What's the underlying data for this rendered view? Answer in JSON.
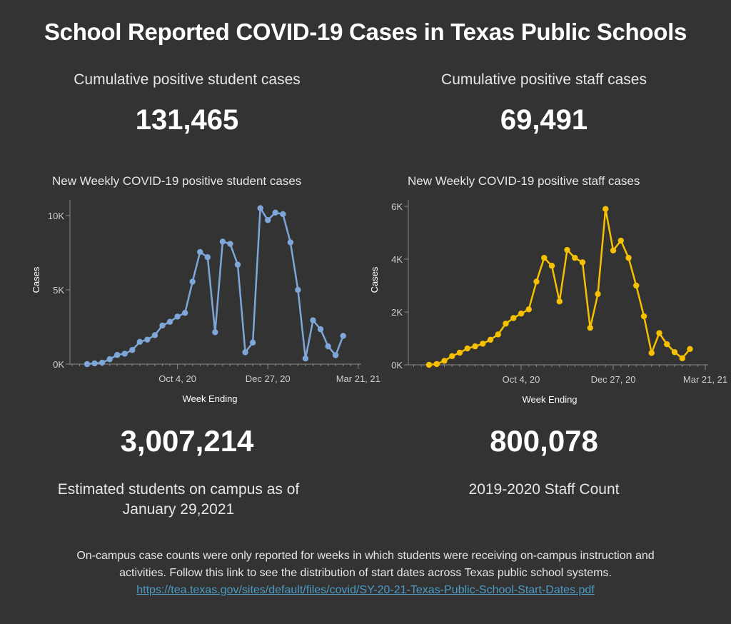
{
  "title": "School Reported COVID-19 Cases in Texas Public Schools",
  "kpis": {
    "student_cases_label": "Cumulative positive student cases",
    "student_cases_value": "131,465",
    "staff_cases_label": "Cumulative positive staff cases",
    "staff_cases_value": "69,491",
    "students_on_campus_value": "3,007,214",
    "students_on_campus_label_line1": "Estimated students on campus as of",
    "students_on_campus_label_line2": "January 29,2021",
    "staff_count_value": "800,078",
    "staff_count_label": "2019-2020 Staff Count"
  },
  "footer": {
    "line1": "On-campus case counts were only reported for weeks in which students were receiving on-campus instruction and",
    "line2": "activities. Follow this link to see the distribution of start dates across Texas public school systems.",
    "link": "https://tea.texas.gov/sites/default/files/covid/SY-20-21-Texas-Public-School-Start-Dates.pdf"
  },
  "colors": {
    "student": "#7ea6d8",
    "staff": "#f5c000",
    "background": "#333333",
    "link": "#4b9bc4"
  },
  "chart_data": [
    {
      "type": "line",
      "title": "New Weekly COVID-19 positive student cases",
      "xlabel": "Week Ending",
      "ylabel": "Cases",
      "ylim": [
        0,
        11000
      ],
      "yticks": [
        {
          "v": 0,
          "label": "0K"
        },
        {
          "v": 5000,
          "label": "5K"
        },
        {
          "v": 10000,
          "label": "10K"
        }
      ],
      "xticks": [
        {
          "i": 14,
          "label": "Oct 4, 20"
        },
        {
          "i": 26,
          "label": "Dec 27, 20"
        },
        {
          "i": 38,
          "label": "Mar 21, 21"
        }
      ],
      "x_index_start": 2,
      "x_count": 42,
      "grid": false,
      "series": [
        {
          "name": "Student cases",
          "color": "#7ea6d8",
          "values": [
            0,
            50,
            100,
            330,
            620,
            700,
            950,
            1500,
            1650,
            1950,
            2600,
            2850,
            3200,
            3450,
            5550,
            7550,
            7200,
            2150,
            8250,
            8100,
            6700,
            800,
            1450,
            10500,
            9700,
            10200,
            10100,
            8200,
            5000,
            380,
            2950,
            2350,
            1200,
            600,
            1900
          ]
        }
      ]
    },
    {
      "type": "line",
      "title": "New Weekly COVID-19 positive staff cases",
      "xlabel": "Week Ending",
      "ylabel": "Cases",
      "ylim": [
        0,
        6000
      ],
      "yticks": [
        {
          "v": 0,
          "label": "0K"
        },
        {
          "v": 2000,
          "label": "2K"
        },
        {
          "v": 4000,
          "label": "4K"
        },
        {
          "v": 6000,
          "label": "6K"
        }
      ],
      "xticks": [
        {
          "i": 14,
          "label": "Oct 4, 20"
        },
        {
          "i": 26,
          "label": "Dec 27, 20"
        },
        {
          "i": 38,
          "label": "Mar 21, 21"
        }
      ],
      "x_index_start": 2,
      "x_count": 42,
      "grid": false,
      "series": [
        {
          "name": "Staff cases",
          "color": "#f5c000",
          "values": [
            0,
            30,
            150,
            330,
            460,
            620,
            700,
            800,
            950,
            1150,
            1560,
            1770,
            1940,
            2100,
            3150,
            4050,
            3750,
            2400,
            4350,
            4050,
            3880,
            1400,
            2680,
            5900,
            4330,
            4700,
            4050,
            3000,
            1840,
            450,
            1200,
            780,
            480,
            250,
            600
          ]
        }
      ]
    }
  ]
}
